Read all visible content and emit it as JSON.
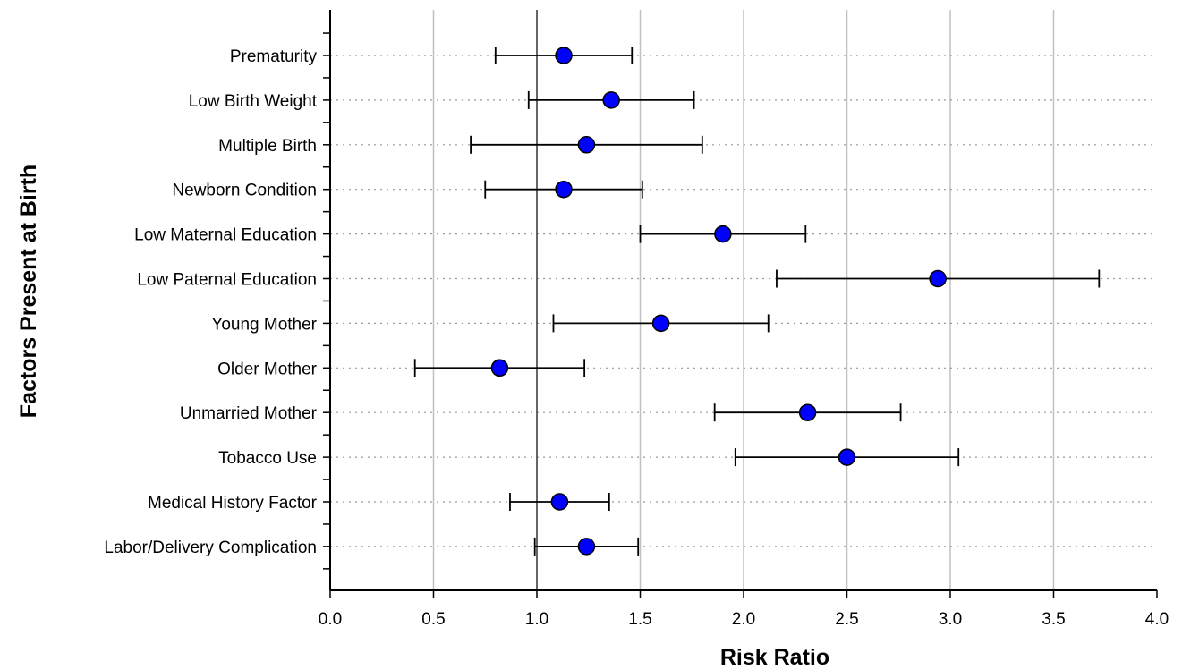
{
  "chart_data": {
    "type": "scatter",
    "title": "",
    "xlabel": "Risk Ratio",
    "ylabel": "Factors Present at Birth",
    "xlim": [
      0.0,
      4.0
    ],
    "xticks": [
      "0.0",
      "0.5",
      "1.0",
      "1.5",
      "2.0",
      "2.5",
      "3.0",
      "3.5",
      "4.0"
    ],
    "reference_line": 1.0,
    "grid": "vertical",
    "categories": [
      "Prematurity",
      "Low Birth Weight",
      "Multiple Birth",
      "Newborn Condition",
      "Low Maternal Education",
      "Low Paternal Education",
      "Young Mother",
      "Older Mother",
      "Unmarried Mother",
      "Tobacco Use",
      "Medical History Factor",
      "Labor/Delivery Complication"
    ],
    "series": [
      {
        "values": [
          1.13,
          1.36,
          1.24,
          1.13,
          1.9,
          2.94,
          1.6,
          0.82,
          2.31,
          2.5,
          1.11,
          1.24
        ],
        "lower": [
          0.8,
          0.96,
          0.68,
          0.75,
          1.5,
          2.16,
          1.08,
          0.41,
          1.86,
          1.96,
          0.87,
          0.99
        ],
        "upper": [
          1.46,
          1.76,
          1.8,
          1.51,
          2.3,
          3.72,
          2.12,
          1.23,
          2.76,
          3.04,
          1.35,
          1.49
        ]
      }
    ],
    "colors": {
      "point": "#0000ff",
      "point_stroke": "#000000",
      "grid": "#c0c0c0",
      "axis": "#000000"
    }
  }
}
